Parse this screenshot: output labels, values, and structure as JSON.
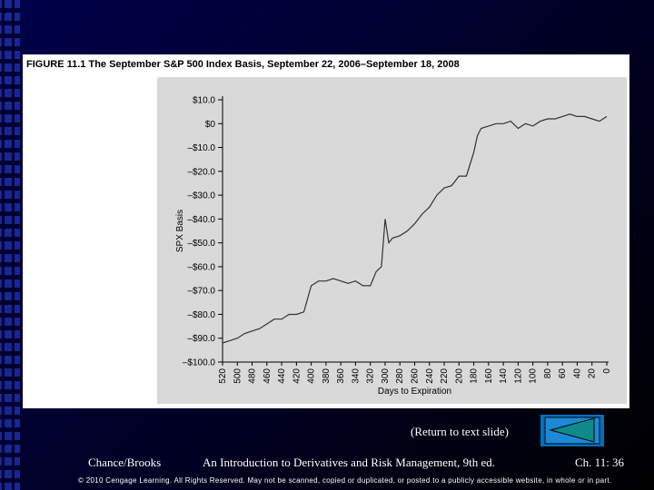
{
  "chart_data": {
    "type": "line",
    "title": "FIGURE 11.1  The September S&P 500 Index Basis, September 22, 2006–September 18, 2008",
    "xlabel": "Days to Expiration",
    "ylabel": "SPX Basis",
    "color": "#333333",
    "x": [
      520,
      510,
      500,
      490,
      480,
      470,
      460,
      450,
      440,
      430,
      420,
      410,
      400,
      390,
      380,
      370,
      360,
      350,
      340,
      330,
      320,
      312,
      305,
      300,
      295,
      290,
      280,
      270,
      260,
      250,
      240,
      230,
      220,
      210,
      200,
      190,
      180,
      175,
      170,
      160,
      150,
      140,
      130,
      120,
      110,
      100,
      90,
      80,
      70,
      60,
      50,
      40,
      30,
      20,
      10,
      0
    ],
    "values": [
      -92,
      -91,
      -90,
      -88,
      -87,
      -86,
      -84,
      -82,
      -82,
      -80,
      -80,
      -79,
      -68,
      -66,
      -66,
      -65,
      -66,
      -67,
      -66,
      -68,
      -68,
      -62,
      -60,
      -40,
      -50,
      -48,
      -47,
      -45,
      -42,
      -38,
      -35,
      -30,
      -27,
      -26,
      -22,
      -22,
      -12,
      -5,
      -2,
      -1,
      0,
      0,
      1,
      -2,
      0,
      -1,
      1,
      2,
      2,
      3,
      4,
      3,
      3,
      2,
      1,
      3
    ],
    "xlim": [
      520,
      0
    ],
    "ylim": [
      -100,
      10
    ],
    "xticks": [
      520,
      500,
      480,
      460,
      440,
      420,
      400,
      380,
      360,
      340,
      320,
      300,
      280,
      260,
      240,
      220,
      200,
      180,
      160,
      140,
      120,
      100,
      80,
      60,
      40,
      20,
      0
    ],
    "yticks": [
      {
        "value": 10,
        "label": "$10.0"
      },
      {
        "value": 0,
        "label": "$0"
      },
      {
        "value": -10,
        "label": "–$10.0"
      },
      {
        "value": -20,
        "label": "–$20.0"
      },
      {
        "value": -30,
        "label": "–$30.0"
      },
      {
        "value": -40,
        "label": "–$40.0"
      },
      {
        "value": -50,
        "label": "–$50.0"
      },
      {
        "value": -60,
        "label": "–$60.0"
      },
      {
        "value": -70,
        "label": "–$70.0"
      },
      {
        "value": -80,
        "label": "–$80.0"
      },
      {
        "value": -90,
        "label": "–$90.0"
      },
      {
        "value": -100,
        "label": "–$100.0"
      }
    ],
    "grid": false
  },
  "footer": {
    "return_link": "(Return to text slide)",
    "author": "Chance/Brooks",
    "book": "An Introduction to Derivatives and Risk Management, 9th ed.",
    "page": "Ch. 11:  36",
    "copyright": "© 2010 Cengage Learning. All Rights Reserved. May not be scanned, copied or duplicated, or posted to a publicly accessible website, in whole or in part."
  }
}
